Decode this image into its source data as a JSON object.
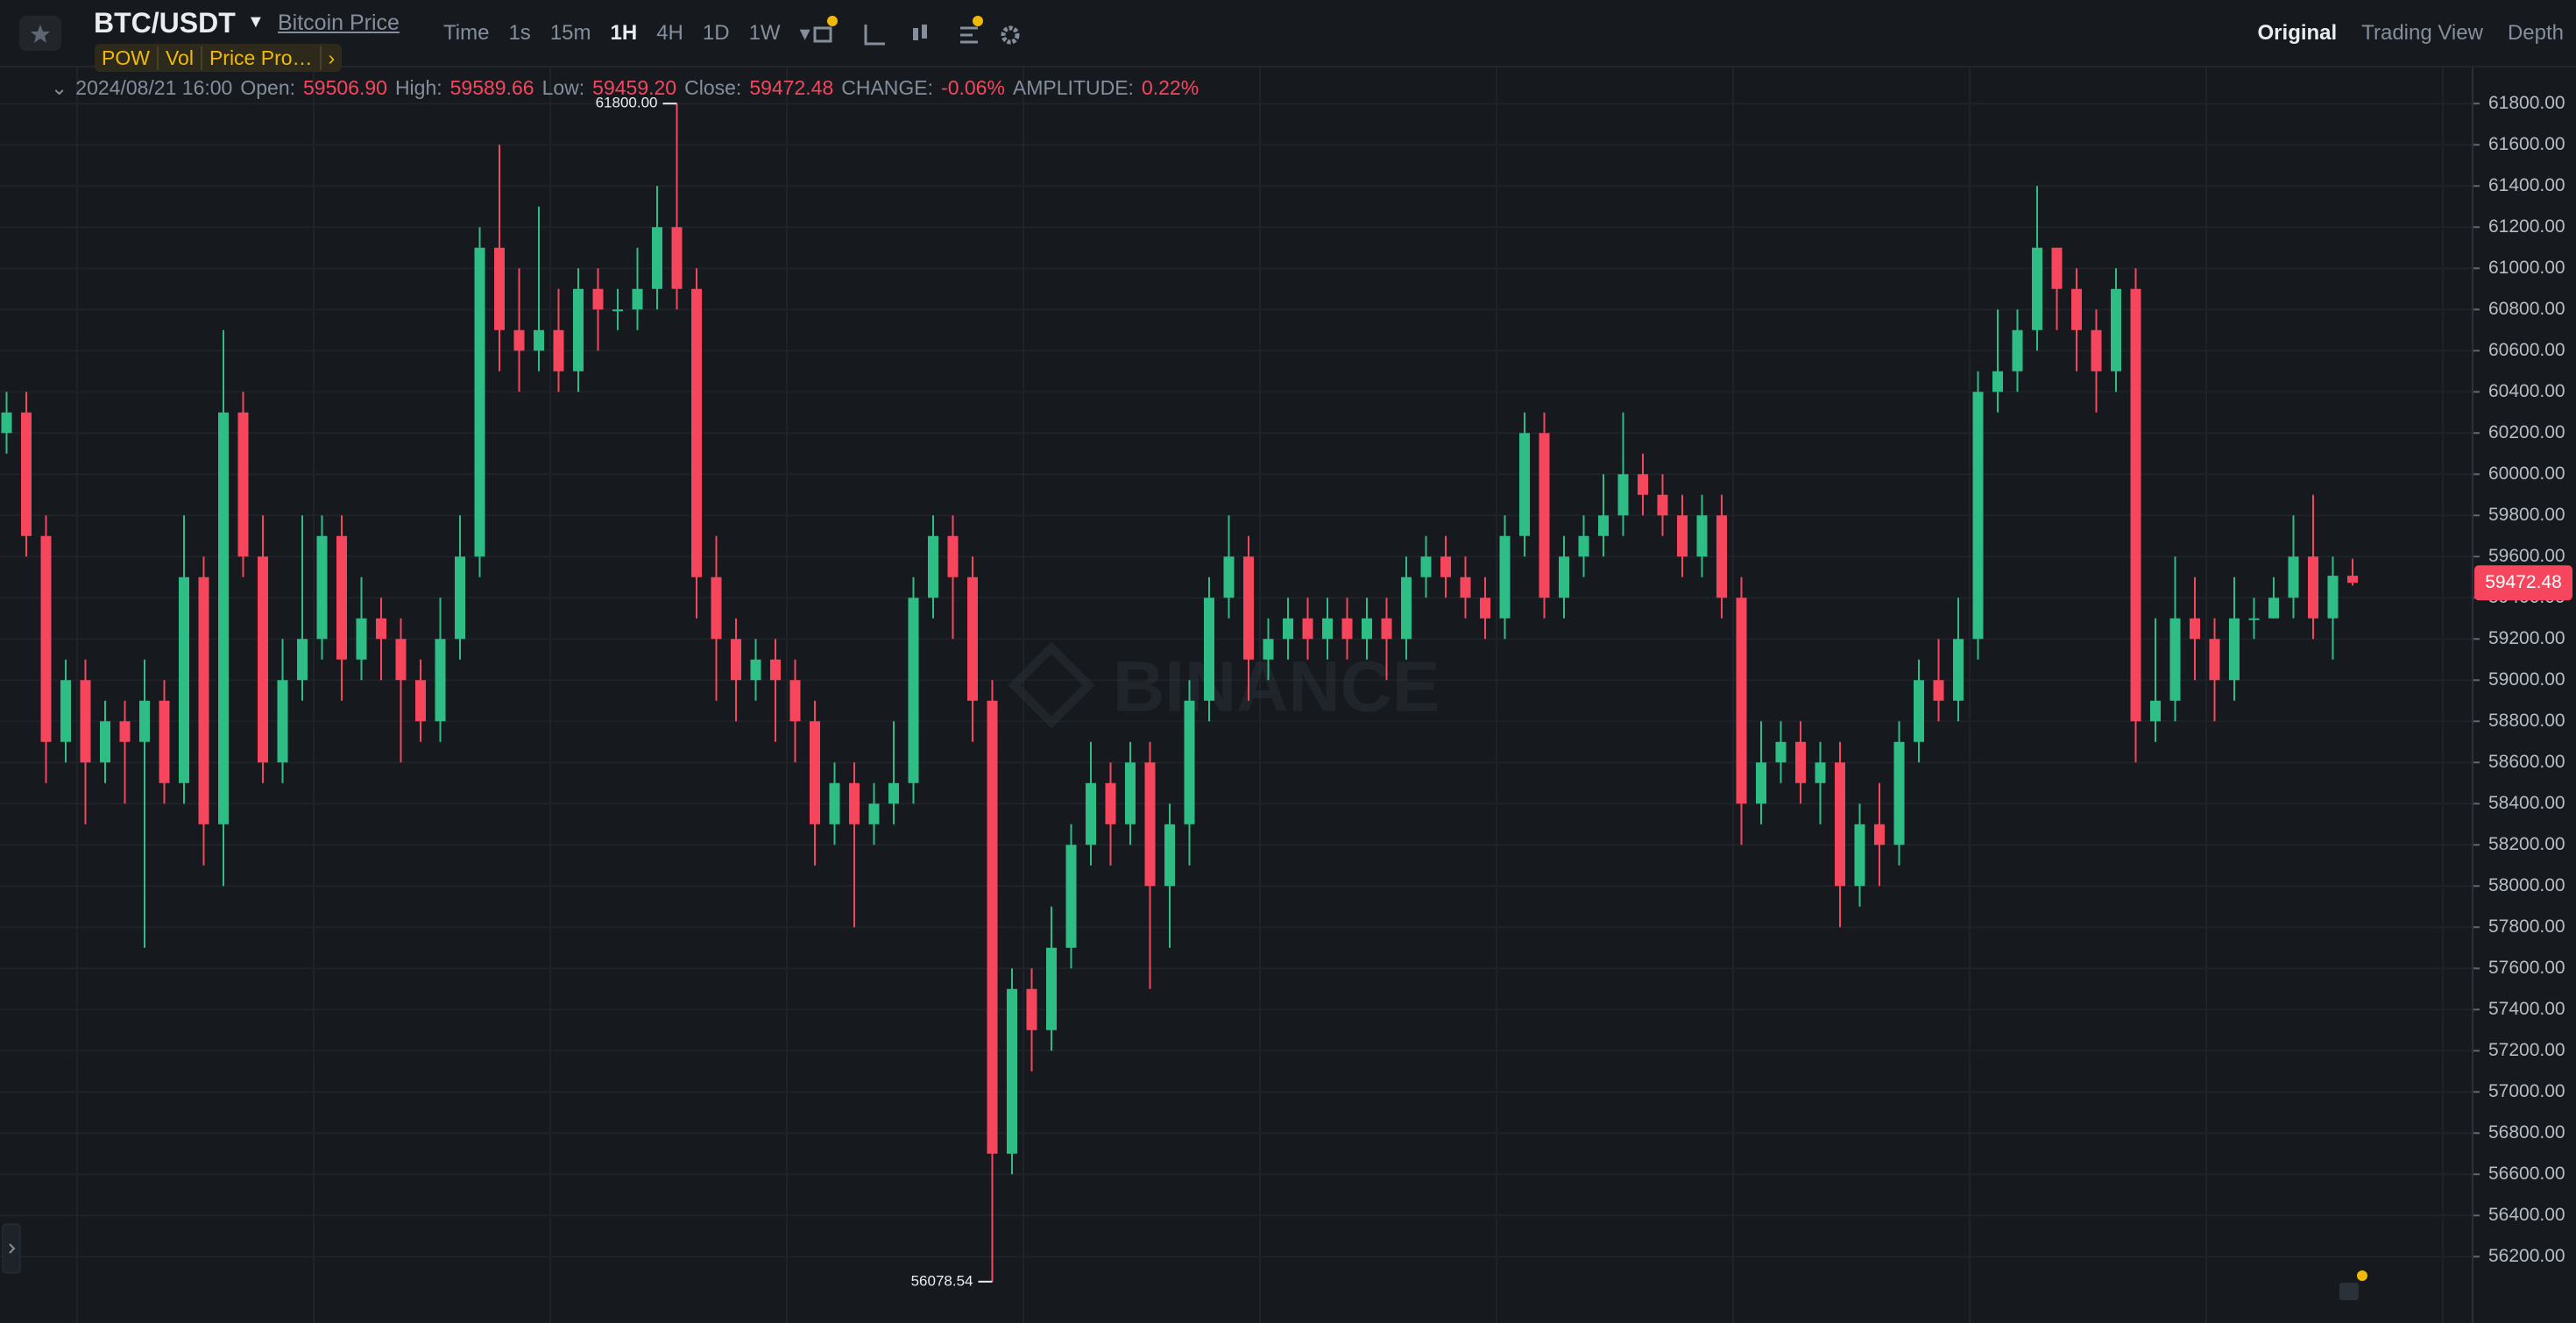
{
  "header": {
    "pair": "BTC/USDT",
    "link": "Bitcoin Price",
    "tags": [
      "POW",
      "Vol",
      "Price Pro…"
    ],
    "intervals": [
      "Time",
      "1s",
      "15m",
      "1H",
      "4H",
      "1D",
      "1W"
    ],
    "views": [
      "Original",
      "Trading View",
      "Depth"
    ]
  },
  "info": {
    "date": "2024/08/21 16:00",
    "fields": [
      {
        "label": "Open:",
        "value": "59506.90"
      },
      {
        "label": "High:",
        "value": "59589.66"
      },
      {
        "label": "Low:",
        "value": "59459.20"
      },
      {
        "label": "Close:",
        "value": "59472.48"
      },
      {
        "label": "CHANGE:",
        "value": "-0.06%"
      },
      {
        "label": "AMPLITUDE:",
        "value": "0.22%"
      }
    ]
  },
  "watermark": "BINANCE",
  "chart_data": {
    "type": "candlestick",
    "open": [
      60200,
      60300,
      59700,
      58700,
      59000,
      58600,
      58800,
      58700,
      58900,
      58500,
      59500,
      58300,
      60300,
      59600,
      58600,
      59000,
      59200,
      59700,
      59100,
      59300,
      59200,
      59000,
      58800,
      59200,
      59600,
      61100,
      60700,
      60600,
      60700,
      60500,
      60900,
      60800,
      60800,
      60900,
      61200,
      60900,
      59500,
      59200,
      59000,
      59100,
      59000,
      58800,
      58300,
      58500,
      58300,
      58400,
      58500,
      59400,
      59700,
      59500,
      58900,
      56700,
      57500,
      57300,
      57700,
      58200,
      58500,
      58300,
      58600,
      58000,
      58300,
      58900,
      59400,
      59600,
      59100,
      59200,
      59300,
      59200,
      59300,
      59200,
      59300,
      59200,
      59500,
      59600,
      59500,
      59400,
      59300,
      59700,
      60200,
      59400,
      59600,
      59700,
      59800,
      60000,
      59900,
      59800,
      59600,
      59800,
      59400,
      58400,
      58600,
      58700,
      58500,
      58600,
      58000,
      58300,
      58200,
      58700,
      59000,
      58900,
      59200,
      60400,
      60500,
      60700,
      61100,
      60900,
      60700,
      60500,
      60900,
      58800,
      58900,
      59300,
      59200,
      59000,
      59300,
      59300,
      59400,
      59600,
      59300,
      59506.9
    ],
    "high": [
      60400,
      60400,
      59800,
      59100,
      59100,
      58900,
      58900,
      59100,
      59000,
      59800,
      59600,
      60700,
      60400,
      59800,
      59200,
      59800,
      59800,
      59800,
      59500,
      59400,
      59300,
      59100,
      59400,
      59800,
      61200,
      61600,
      61000,
      61300,
      60900,
      61000,
      61000,
      60900,
      61100,
      61400,
      61800,
      61000,
      59700,
      59300,
      59200,
      59200,
      59100,
      58900,
      58600,
      58600,
      58500,
      58800,
      59500,
      59800,
      59800,
      59600,
      59000,
      57600,
      57600,
      57900,
      58300,
      58700,
      58600,
      58700,
      58700,
      58400,
      59000,
      59500,
      59800,
      59700,
      59300,
      59400,
      59400,
      59400,
      59400,
      59400,
      59400,
      59600,
      59700,
      59700,
      59600,
      59500,
      59800,
      60300,
      60300,
      59700,
      59800,
      60000,
      60300,
      60100,
      60000,
      59900,
      59900,
      59900,
      59500,
      58800,
      58800,
      58800,
      58700,
      58700,
      58400,
      58500,
      58800,
      59100,
      59200,
      59400,
      60500,
      60800,
      60800,
      61400,
      61100,
      61000,
      60800,
      61000,
      61000,
      59300,
      59600,
      59500,
      59300,
      59500,
      59400,
      59500,
      59800,
      59900,
      59600,
      59589.66
    ],
    "low": [
      60100,
      59600,
      58500,
      58600,
      58300,
      58500,
      58400,
      57700,
      58400,
      58400,
      58100,
      58000,
      59500,
      58500,
      58500,
      58900,
      59100,
      58900,
      59000,
      59000,
      58600,
      58700,
      58700,
      59100,
      59500,
      60500,
      60400,
      60500,
      60400,
      60400,
      60600,
      60700,
      60700,
      60800,
      60800,
      59300,
      58900,
      58800,
      58900,
      58700,
      58600,
      58100,
      58200,
      57800,
      58200,
      58300,
      58400,
      59300,
      59200,
      58700,
      56078.54,
      56600,
      57100,
      57200,
      57600,
      58100,
      58100,
      58200,
      57500,
      57700,
      58100,
      58800,
      59300,
      58900,
      59000,
      59100,
      59100,
      59100,
      59100,
      59100,
      59000,
      59100,
      59400,
      59400,
      59300,
      59200,
      59200,
      59600,
      59300,
      59300,
      59500,
      59600,
      59700,
      59800,
      59700,
      59500,
      59500,
      59300,
      58200,
      58300,
      58500,
      58400,
      58300,
      57800,
      57900,
      58000,
      58100,
      58600,
      58800,
      58800,
      59100,
      60300,
      60400,
      60600,
      60700,
      60500,
      60300,
      60400,
      58600,
      58700,
      58800,
      59000,
      58800,
      58900,
      59200,
      59300,
      59300,
      59200,
      59100,
      59459.2
    ],
    "close": [
      60300,
      59700,
      58700,
      59000,
      58600,
      58800,
      58700,
      58900,
      58500,
      59500,
      58300,
      60300,
      59600,
      58600,
      59000,
      59200,
      59700,
      59100,
      59300,
      59200,
      59000,
      58800,
      59200,
      59600,
      61100,
      60700,
      60600,
      60700,
      60500,
      60900,
      60800,
      60800,
      60900,
      61200,
      60900,
      59500,
      59200,
      59000,
      59100,
      59000,
      58800,
      58300,
      58500,
      58300,
      58400,
      58500,
      59400,
      59700,
      59500,
      58900,
      56700,
      57500,
      57300,
      57700,
      58200,
      58500,
      58300,
      58600,
      58000,
      58300,
      58900,
      59400,
      59600,
      59100,
      59200,
      59300,
      59200,
      59300,
      59200,
      59300,
      59200,
      59500,
      59600,
      59500,
      59400,
      59300,
      59700,
      60200,
      59400,
      59600,
      59700,
      59800,
      60000,
      59900,
      59800,
      59600,
      59800,
      59400,
      58400,
      58600,
      58700,
      58500,
      58600,
      58000,
      58300,
      58200,
      58700,
      59000,
      58900,
      59200,
      60400,
      60500,
      60700,
      61100,
      60900,
      60700,
      60500,
      60900,
      58800,
      58900,
      59300,
      59200,
      59000,
      59300,
      59300,
      59400,
      59600,
      59300,
      59506.9,
      59472.48
    ],
    "up_color": "#2ebd85",
    "down_color": "#f6465d",
    "ylim": [
      55950,
      61950
    ],
    "yticks": [
      {
        "value": 56200,
        "label": "56200.00"
      },
      {
        "value": 56400,
        "label": "56400.00"
      },
      {
        "value": 56600,
        "label": "56600.00"
      },
      {
        "value": 56800,
        "label": "56800.00"
      },
      {
        "value": 57000,
        "label": "57000.00"
      },
      {
        "value": 57200,
        "label": "57200.00"
      },
      {
        "value": 57400,
        "label": "57400.00"
      },
      {
        "value": 57600,
        "label": "57600.00"
      },
      {
        "value": 57800,
        "label": "57800.00"
      },
      {
        "value": 58000,
        "label": "58000.00"
      },
      {
        "value": 58200,
        "label": "58200.00"
      },
      {
        "value": 58400,
        "label": "58400.00"
      },
      {
        "value": 58600,
        "label": "58600.00"
      },
      {
        "value": 58800,
        "label": "58800.00"
      },
      {
        "value": 59000,
        "label": "59000.00"
      },
      {
        "value": 59200,
        "label": "59200.00"
      },
      {
        "value": 59400,
        "label": "59400.00"
      },
      {
        "value": 59600,
        "label": "59600.00"
      },
      {
        "value": 59800,
        "label": "59800.00"
      },
      {
        "value": 60000,
        "label": "60000.00"
      },
      {
        "value": 60200,
        "label": "60200.00"
      },
      {
        "value": 60400,
        "label": "60400.00"
      },
      {
        "value": 60600,
        "label": "60600.00"
      },
      {
        "value": 60800,
        "label": "60800.00"
      },
      {
        "value": 61000,
        "label": "61000.00"
      },
      {
        "value": 61200,
        "label": "61200.00"
      },
      {
        "value": 61400,
        "label": "61400.00"
      },
      {
        "value": 61600,
        "label": "61600.00"
      },
      {
        "value": 61800,
        "label": "61800.00"
      }
    ],
    "grid": true,
    "max_label": "61800.00",
    "min_label": "56078.54",
    "last_label": "59472.48"
  }
}
